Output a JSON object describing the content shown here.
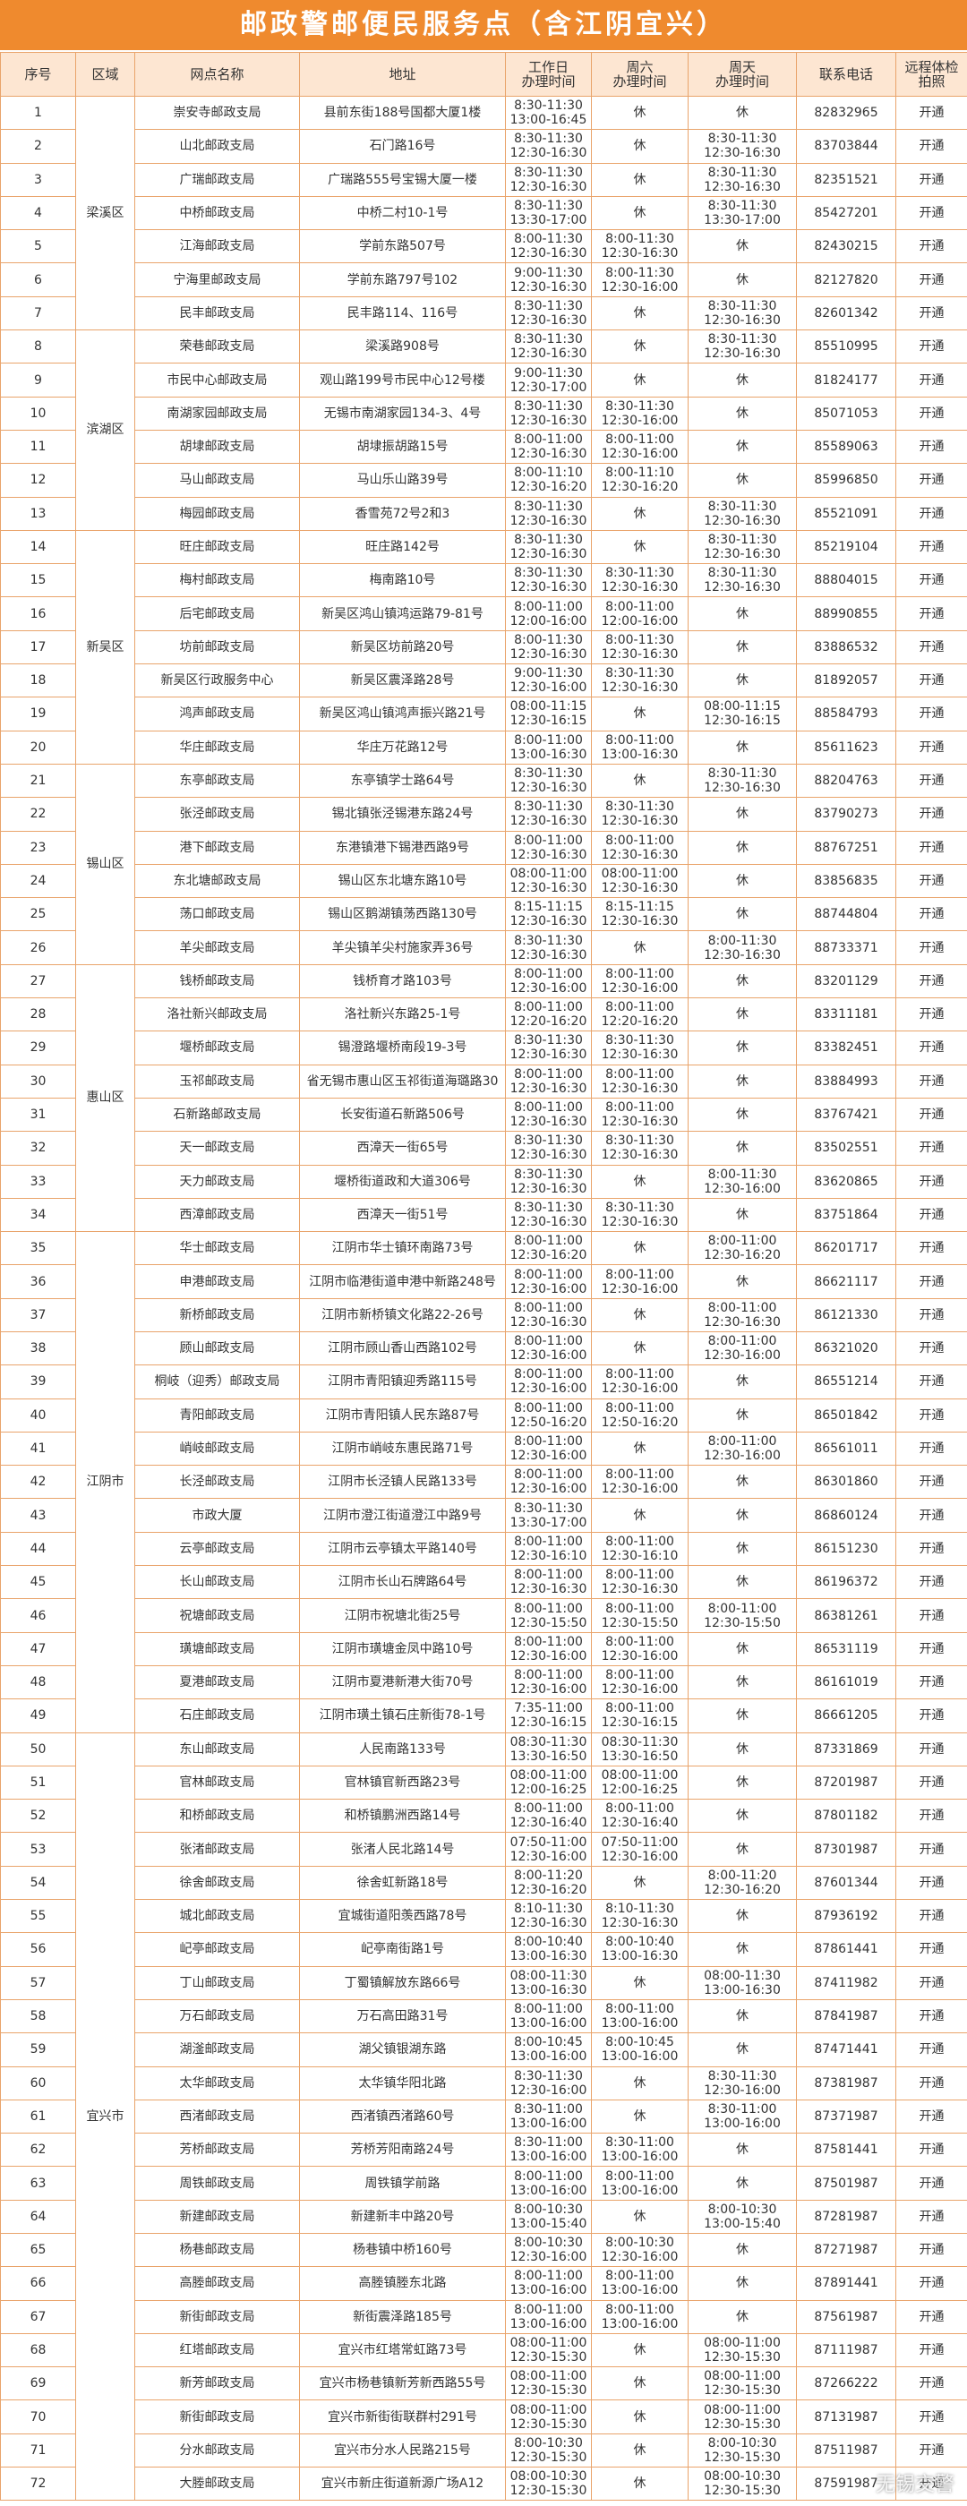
{
  "title": "邮政警邮便民服务点（含江阴宜兴）",
  "headers": [
    "序号",
    "区域",
    "网点名称",
    "地址",
    "工作日\n办理时间",
    "周六\n办理时间",
    "周天\n办理时间",
    "联系电话",
    "远程体检\n拍照"
  ],
  "groups": [
    {
      "region": "梁溪区",
      "rows": [
        [
          1,
          "崇安寺邮政支局",
          "县前东街188号国都大厦1楼",
          "8:30-11:30\n13:00-16:45",
          "休",
          "休",
          "82832965",
          "开通"
        ],
        [
          2,
          "山北邮政支局",
          "石门路16号",
          "8:30-11:30\n12:30-16:30",
          "休",
          "8:30-11:30\n12:30-16:30",
          "83703844",
          "开通"
        ],
        [
          3,
          "广瑞邮政支局",
          "广瑞路555号宝锡大厦一楼",
          "8:30-11:30\n12:30-16:30",
          "休",
          "8:30-11:30\n12:30-16:30",
          "82351521",
          "开通"
        ],
        [
          4,
          "中桥邮政支局",
          "中桥二村10-1号",
          "8:30-11:30\n13:30-17:00",
          "休",
          "8:30-11:30\n13:30-17:00",
          "85427201",
          "开通"
        ],
        [
          5,
          "江海邮政支局",
          "学前东路507号",
          "8:00-11:30\n12:30-16:30",
          "8:00-11:30\n12:30-16:30",
          "休",
          "82430215",
          "开通"
        ],
        [
          6,
          "宁海里邮政支局",
          "学前东路797号102",
          "9:00-11:30\n12:30-16:30",
          "8:00-11:30\n12:30-16:00",
          "休",
          "82127820",
          "开通"
        ],
        [
          7,
          "民丰邮政支局",
          "民丰路114、116号",
          "8:30-11:30\n12:30-16:30",
          "休",
          "8:30-11:30\n12:30-16:30",
          "82601342",
          "开通"
        ]
      ]
    },
    {
      "region": "滨湖区",
      "rows": [
        [
          8,
          "荣巷邮政支局",
          "梁溪路908号",
          "8:30-11:30\n12:30-16:30",
          "休",
          "8:30-11:30\n12:30-16:30",
          "85510995",
          "开通"
        ],
        [
          9,
          "市民中心邮政支局",
          "观山路199号市民中心12号楼",
          "9:00-11:30\n12:30-17:00",
          "休",
          "休",
          "81824177",
          "开通"
        ],
        [
          10,
          "南湖家园邮政支局",
          "无锡市南湖家园134-3、4号",
          "8:30-11:30\n12:30-16:30",
          "8:30-11:30\n12:30-16:00",
          "休",
          "85071053",
          "开通"
        ],
        [
          11,
          "胡埭邮政支局",
          "胡埭振胡路15号",
          "8:00-11:00\n12:30-16:30",
          "8:00-11:00\n12:30-16:00",
          "休",
          "85589063",
          "开通"
        ],
        [
          12,
          "马山邮政支局",
          "马山乐山路39号",
          "8:00-11:10\n12:30-16:20",
          "8:00-11:10\n12:30-16:20",
          "休",
          "85996850",
          "开通"
        ],
        [
          13,
          "梅园邮政支局",
          "香雪苑72号2和3",
          "8:30-11:30\n12:30-16:30",
          "休",
          "8:30-11:30\n12:30-16:30",
          "85521091",
          "开通"
        ]
      ]
    },
    {
      "region": "新吴区",
      "rows": [
        [
          14,
          "旺庄邮政支局",
          "旺庄路142号",
          "8:30-11:30\n12:30-16:30",
          "休",
          "8:30-11:30\n12:30-16:30",
          "85219104",
          "开通"
        ],
        [
          15,
          "梅村邮政支局",
          "梅南路10号",
          "8:30-11:30\n12:30-16:30",
          "8:30-11:30\n12:30-16:30",
          "8:30-11:30\n12:30-16:30",
          "88804015",
          "开通"
        ],
        [
          16,
          "后宅邮政支局",
          "新吴区鸿山镇鸿运路79-81号",
          "8:00-11:00\n12:00-16:00",
          "8:00-11:00\n12:00-16:00",
          "休",
          "88990855",
          "开通"
        ],
        [
          17,
          "坊前邮政支局",
          "新吴区坊前路20号",
          "8:00-11:30\n12:30-16:30",
          "8:00-11:30\n12:30-16:30",
          "休",
          "83886532",
          "开通"
        ],
        [
          18,
          "新吴区行政服务中心",
          "新吴区震泽路28号",
          "9:00-11:30\n12:30-16:00",
          "8:30-11:30\n12:30-16:30",
          "休",
          "81892057",
          "开通"
        ],
        [
          19,
          "鸿声邮政支局",
          "新吴区鸿山镇鸿声振兴路21号",
          "08:00-11:15\n12:30-16:15",
          "休",
          "08:00-11:15\n12:30-16:15",
          "88584793",
          "开通"
        ],
        [
          20,
          "华庄邮政支局",
          "华庄万花路12号",
          "8:00-11:00\n13:00-16:30",
          "8:00-11:00\n13:00-16:30",
          "休",
          "85611623",
          "开通"
        ]
      ]
    },
    {
      "region": "锡山区",
      "rows": [
        [
          21,
          "东亭邮政支局",
          "东亭镇学士路64号",
          "8:30-11:30\n12:30-16:30",
          "休",
          "8:30-11:30\n12:30-16:30",
          "88204763",
          "开通"
        ],
        [
          22,
          "张泾邮政支局",
          "锡北镇张泾锡港东路24号",
          "8:30-11:30\n12:30-16:30",
          "8:30-11:30\n12:30-16:30",
          "休",
          "83790273",
          "开通"
        ],
        [
          23,
          "港下邮政支局",
          "东港镇港下锡港西路9号",
          "8:00-11:00\n12:30-16:30",
          "8:00-11:00\n12:30-16:30",
          "休",
          "88767251",
          "开通"
        ],
        [
          24,
          "东北塘邮政支局",
          "锡山区东北塘东路10号",
          "08:00-11:00\n12:30-16:30",
          "08:00-11:00\n12:30-16:30",
          "休",
          "83856835",
          "开通"
        ],
        [
          25,
          "荡口邮政支局",
          "锡山区鹅湖镇荡西路130号",
          "8:15-11:15\n12:30-16:30",
          "8:15-11:15\n12:30-16:30",
          "休",
          "88744804",
          "开通"
        ],
        [
          26,
          "羊尖邮政支局",
          "羊尖镇羊尖村施家弄36号",
          "8:30-11:30\n12:30-16:30",
          "休",
          "8:00-11:30\n12:30-16:30",
          "88733371",
          "开通"
        ]
      ]
    },
    {
      "region": "惠山区",
      "rows": [
        [
          27,
          "钱桥邮政支局",
          "钱桥育才路103号",
          "8:00-11:00\n12:30-16:00",
          "8:00-11:00\n12:30-16:00",
          "休",
          "83201129",
          "开通"
        ],
        [
          28,
          "洛社新兴邮政支局",
          "洛社新兴东路25-1号",
          "8:00-11:00\n12:20-16:20",
          "8:00-11:00\n12:20-16:20",
          "休",
          "83311181",
          "开通"
        ],
        [
          29,
          "堰桥邮政支局",
          "锡澄路堰桥南段19-3号",
          "8:30-11:30\n12:30-16:30",
          "8:30-11:30\n12:30-16:30",
          "休",
          "83382451",
          "开通"
        ],
        [
          30,
          "玉祁邮政支局",
          "省无锡市惠山区玉祁街道海璐路30",
          "8:00-11:00\n12:30-16:30",
          "8:00-11:00\n12:30-16:30",
          "休",
          "83884993",
          "开通"
        ],
        [
          31,
          "石新路邮政支局",
          "长安街道石新路506号",
          "8:00-11:00\n12:30-16:30",
          "8:00-11:00\n12:30-16:30",
          "休",
          "83767421",
          "开通"
        ],
        [
          32,
          "天一邮政支局",
          "西漳天一街65号",
          "8:30-11:30\n12:30-16:30",
          "8:30-11:30\n12:30-16:30",
          "休",
          "83502551",
          "开通"
        ],
        [
          33,
          "天力邮政支局",
          "堰桥街道政和大道306号",
          "8:30-11:30\n12:30-16:30",
          "休",
          "8:00-11:30\n12:30-16:00",
          "83620865",
          "开通"
        ],
        [
          34,
          "西漳邮政支局",
          "西漳天一街51号",
          "8:30-11:30\n12:30-16:30",
          "8:30-11:30\n12:30-16:30",
          "休",
          "83751864",
          "开通"
        ]
      ]
    },
    {
      "region": "江阴市",
      "rows": [
        [
          35,
          "华士邮政支局",
          "江阴市华士镇环南路73号",
          "8:00-11:00\n12:30-16:20",
          "休",
          "8:00-11:00\n12:30-16:20",
          "86201717",
          "开通"
        ],
        [
          36,
          "申港邮政支局",
          "江阴市临港街道申港中新路248号",
          "8:00-11:00\n12:30-16:00",
          "8:00-11:00\n12:30-16:00",
          "休",
          "86621117",
          "开通"
        ],
        [
          37,
          "新桥邮政支局",
          "江阴市新桥镇文化路22-26号",
          "8:00-11:00\n12:30-16:30",
          "休",
          "8:00-11:00\n12:30-16:30",
          "86121330",
          "开通"
        ],
        [
          38,
          "顾山邮政支局",
          "江阴市顾山香山西路102号",
          "8:00-11:00\n12:30-16:00",
          "休",
          "8:00-11:00\n12:30-16:00",
          "86321020",
          "开通"
        ],
        [
          39,
          "桐岐（迎秀）邮政支局",
          "江阴市青阳镇迎秀路115号",
          "8:00-11:00\n12:30-16:00",
          "8:00-11:00\n12:30-16:00",
          "休",
          "86551214",
          "开通"
        ],
        [
          40,
          "青阳邮政支局",
          "江阴市青阳镇人民东路87号",
          "8:00-11:00\n12:50-16:20",
          "8:00-11:00\n12:50-16:20",
          "休",
          "86501842",
          "开通"
        ],
        [
          41,
          "峭岐邮政支局",
          "江阴市峭岐东惠民路71号",
          "8:00-11:00\n12:30-16:00",
          "休",
          "8:00-11:00\n12:30-16:00",
          "86561011",
          "开通"
        ],
        [
          42,
          "长泾邮政支局",
          "江阴市长泾镇人民路133号",
          "8:00-11:00\n12:30-16:00",
          "8:00-11:00\n12:30-16:00",
          "休",
          "86301860",
          "开通"
        ],
        [
          43,
          "市政大厦",
          "江阴市澄江街道澄江中路9号",
          "8:30-11:30\n13:30-17:00",
          "休",
          "休",
          "86860124",
          "开通"
        ],
        [
          44,
          "云亭邮政支局",
          "江阴市云亭镇太平路140号",
          "8:00-11:00\n12:30-16:10",
          "8:00-11:00\n12:30-16:10",
          "休",
          "86151230",
          "开通"
        ],
        [
          45,
          "长山邮政支局",
          "江阴市长山石牌路64号",
          "8:00-11:00\n12:30-16:30",
          "8:00-11:00\n12:30-16:30",
          "休",
          "86196372",
          "开通"
        ],
        [
          46,
          "祝塘邮政支局",
          "江阴市祝塘北街25号",
          "8:00-11:00\n12:30-15:50",
          "8:00-11:00\n12:30-15:50",
          "8:00-11:00\n12:30-15:50",
          "86381261",
          "开通"
        ],
        [
          47,
          "璜塘邮政支局",
          "江阴市璜塘金凤中路10号",
          "8:00-11:00\n12:30-16:00",
          "8:00-11:00\n12:30-16:00",
          "休",
          "86531119",
          "开通"
        ],
        [
          48,
          "夏港邮政支局",
          "江阴市夏港新港大街70号",
          "8:00-11:00\n12:30-16:00",
          "8:00-11:00\n12:30-16:00",
          "休",
          "86161019",
          "开通"
        ],
        [
          49,
          "石庄邮政支局",
          "江阴市璜土镇石庄新街78-1号",
          "7:35-11:00\n12:30-16:15",
          "8:00-11:00\n12:30-16:15",
          "休",
          "86661205",
          "开通"
        ]
      ]
    },
    {
      "region": "宜兴市",
      "rows": [
        [
          50,
          "东山邮政支局",
          "人民南路133号",
          "08:30-11:30\n13:30-16:50",
          "08:30-11:30\n13:30-16:50",
          "休",
          "87331869",
          "开通"
        ],
        [
          51,
          "官林邮政支局",
          "官林镇官新西路23号",
          "08:00-11:00\n12:00-16:25",
          "08:00-11:00\n12:00-16:25",
          "休",
          "87201987",
          "开通"
        ],
        [
          52,
          "和桥邮政支局",
          "和桥镇鹏洲西路14号",
          "8:00-11:00\n12:30-16:40",
          "8:00-11:00\n12:30-16:40",
          "休",
          "87801182",
          "开通"
        ],
        [
          53,
          "张渚邮政支局",
          "张渚人民北路14号",
          "07:50-11:00\n12:30-16:00",
          "07:50-11:00\n12:30-16:00",
          "休",
          "87301987",
          "开通"
        ],
        [
          54,
          "徐舍邮政支局",
          "徐舍虹新路18号",
          "8:00-11:20\n12:30-16:20",
          "休",
          "8:00-11:20\n12:30-16:20",
          "87601344",
          "开通"
        ],
        [
          55,
          "城北邮政支局",
          "宜城街道阳羡西路78号",
          "8:10-11:30\n12:30-16:30",
          "8:10-11:30\n12:30-16:30",
          "休",
          "87936192",
          "开通"
        ],
        [
          56,
          "屺亭邮政支局",
          "屺亭南街路1号",
          "8:00-10:40\n13:00-16:30",
          "8:00-10:40\n13:00-16:30",
          "休",
          "87861441",
          "开通"
        ],
        [
          57,
          "丁山邮政支局",
          "丁蜀镇解放东路66号",
          "08:00-11:30\n13:00-16:30",
          "休",
          "08:00-11:30\n13:00-16:30",
          "87411982",
          "开通"
        ],
        [
          58,
          "万石邮政支局",
          "万石高田路31号",
          "8:00-11:00\n13:00-16:00",
          "8:00-11:00\n13:00-16:00",
          "休",
          "87841987",
          "开通"
        ],
        [
          59,
          "湖滏邮政支局",
          "湖父镇银湖东路",
          "8:00-10:45\n13:00-16:00",
          "8:00-10:45\n13:00-16:00",
          "休",
          "87471441",
          "开通"
        ],
        [
          60,
          "太华邮政支局",
          "太华镇华阳北路",
          "8:30-11:30\n12:30-16:00",
          "休",
          "8:30-11:30\n12:30-16:00",
          "87381987",
          "开通"
        ],
        [
          61,
          "西渚邮政支局",
          "西渚镇西渚路60号",
          "8:30-11:00\n13:00-16:00",
          "休",
          "8:30-11:00\n13:00-16:00",
          "87371987",
          "开通"
        ],
        [
          62,
          "芳桥邮政支局",
          "芳桥芳阳南路24号",
          "8:30-11:00\n13:00-16:00",
          "8:30-11:00\n13:00-16:00",
          "休",
          "87581441",
          "开通"
        ],
        [
          63,
          "周铁邮政支局",
          "周铁镇学前路",
          "8:00-11:00\n13:00-16:00",
          "8:00-11:00\n13:00-16:00",
          "休",
          "87501987",
          "开通"
        ],
        [
          64,
          "新建邮政支局",
          "新建新丰中路20号",
          "8:00-10:30\n13:00-15:40",
          "休",
          "8:00-10:30\n13:00-15:40",
          "87281987",
          "开通"
        ],
        [
          65,
          "杨巷邮政支局",
          "杨巷镇中桥160号",
          "8:00-10:30\n12:30-16:00",
          "8:00-10:30\n12:30-16:00",
          "休",
          "87271987",
          "开通"
        ],
        [
          66,
          "高塍邮政支局",
          "高塍镇塍东北路",
          "8:00-11:00\n13:00-16:00",
          "8:00-11:00\n13:00-16:00",
          "休",
          "87891441",
          "开通"
        ],
        [
          67,
          "新街邮政支局",
          "新街震泽路185号",
          "8:00-11:00\n13:00-16:00",
          "8:00-11:00\n13:00-16:00",
          "休",
          "87561987",
          "开通"
        ],
        [
          68,
          "红塔邮政支局",
          "宜兴市红塔常虹路73号",
          "08:00-11:00\n12:30-15:30",
          "休",
          "08:00-11:00\n12:30-15:30",
          "87111987",
          "开通"
        ],
        [
          69,
          "新芳邮政支局",
          "宜兴市杨巷镇新芳新西路55号",
          "08:00-11:00\n12:30-15:30",
          "休",
          "08:00-11:00\n12:30-15:30",
          "87266222",
          "开通"
        ],
        [
          70,
          "新街邮政支局",
          "宜兴市新街街联群村291号",
          "08:00-11:00\n12:30-15:30",
          "休",
          "08:00-11:00\n12:30-15:30",
          "87131987",
          "开通"
        ],
        [
          71,
          "分水邮政支局",
          "宜兴市分水人民路215号",
          "8:00-10:30\n12:30-15:30",
          "休",
          "8:00-10:30\n12:30-15:30",
          "87511987",
          "开通"
        ],
        [
          72,
          "大塍邮政支局",
          "宜兴市新庄街道新源广场A12",
          "08:00-10:30\n12:30-15:30",
          "休",
          "08:00-10:30\n12:30-15:30",
          "87591987",
          "开通"
        ]
      ]
    }
  ],
  "watermark": "无锡交警"
}
